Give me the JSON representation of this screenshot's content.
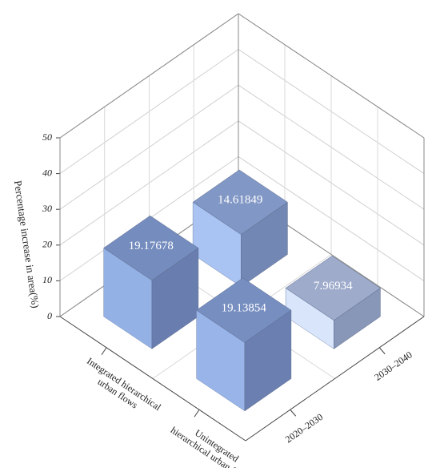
{
  "chart_data": {
    "type": "bar3d",
    "categories": [
      "Integrated hierarchical urban flows",
      "Unintegrated hierarchical urban flows"
    ],
    "series": [
      {
        "name": "2020–2030",
        "values": [
          19.17678,
          19.13854
        ],
        "colors": [
          "#94b1e6",
          "#98b4e9"
        ]
      },
      {
        "name": "2030–2040",
        "values": [
          14.61849,
          7.96934
        ],
        "colors": [
          "#a9c3f2",
          "#d8e5fb"
        ]
      }
    ],
    "zlabel": "Percentage increase in area(%)",
    "zlim": [
      0,
      50
    ],
    "zticks": [
      0,
      10,
      20,
      30,
      40,
      50
    ],
    "grid": true
  }
}
